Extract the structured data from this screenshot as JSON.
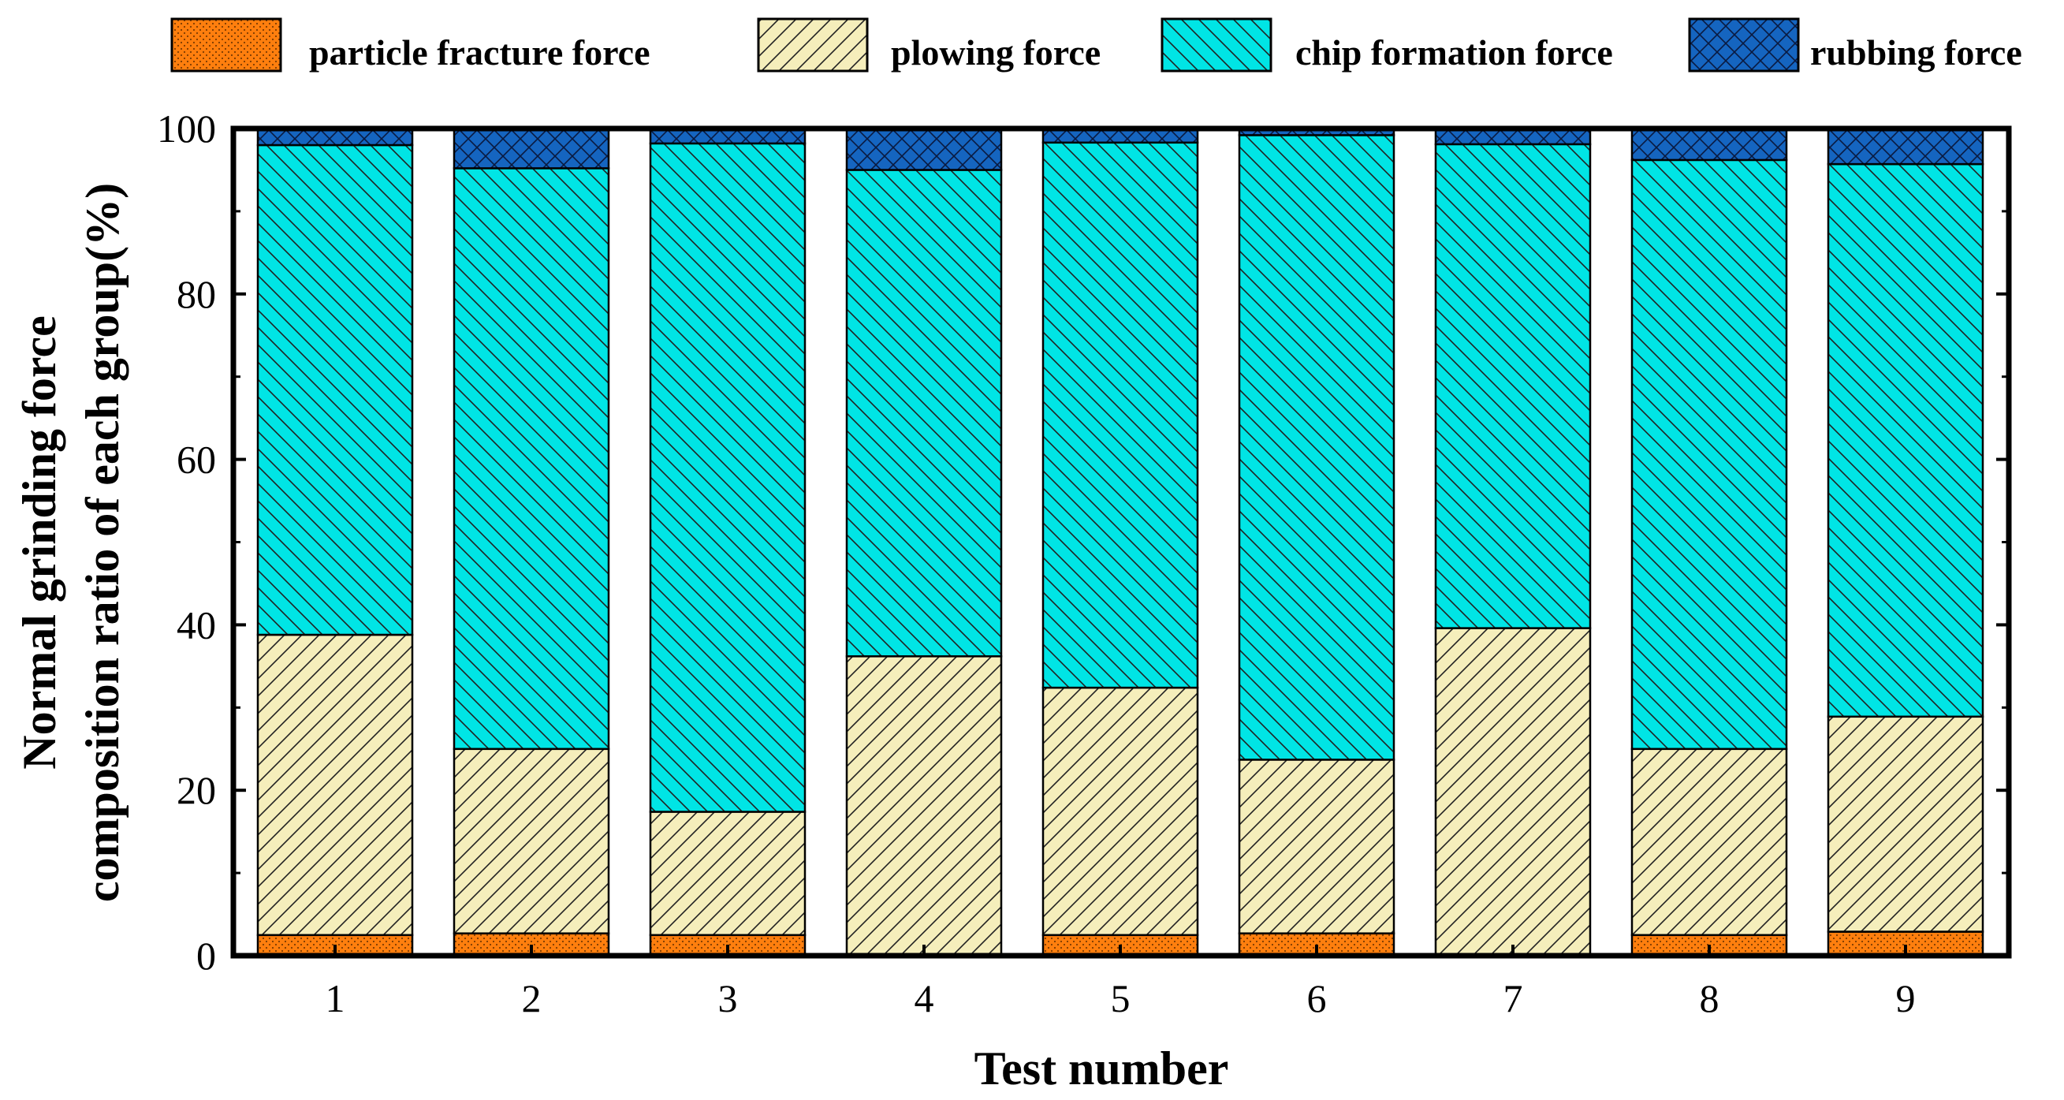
{
  "chart_data": {
    "type": "bar",
    "stacked": true,
    "xlabel": "Test number",
    "ylabel_lines": [
      "Normal grinding force",
      "composition ratio of each group(%)"
    ],
    "categories": [
      "1",
      "2",
      "3",
      "4",
      "5",
      "6",
      "7",
      "8",
      "9"
    ],
    "ylim": [
      0,
      100
    ],
    "yticks": [
      0,
      20,
      40,
      60,
      80,
      100
    ],
    "legend_position": "top",
    "grid": false,
    "series": [
      {
        "name": "particle fracture force",
        "color": "#ff7f0e",
        "pattern": "dots",
        "values": [
          2.5,
          2.7,
          2.5,
          0,
          2.5,
          2.7,
          0,
          2.5,
          2.9
        ]
      },
      {
        "name": "plowing force",
        "color": "#f5eebb",
        "pattern": "forward-hatch",
        "values": [
          36.3,
          22.3,
          14.9,
          36.2,
          29.9,
          21.0,
          39.6,
          22.5,
          26.0
        ]
      },
      {
        "name": "chip formation force",
        "color": "#00e5e5",
        "pattern": "back-hatch",
        "values": [
          59.2,
          70.2,
          80.8,
          58.8,
          65.9,
          75.5,
          58.5,
          71.2,
          66.8
        ]
      },
      {
        "name": "rubbing force",
        "color": "#1565c0",
        "pattern": "crosshatch",
        "values": [
          2.0,
          4.8,
          1.8,
          5.0,
          1.7,
          0.8,
          1.9,
          3.8,
          4.3
        ]
      }
    ]
  }
}
